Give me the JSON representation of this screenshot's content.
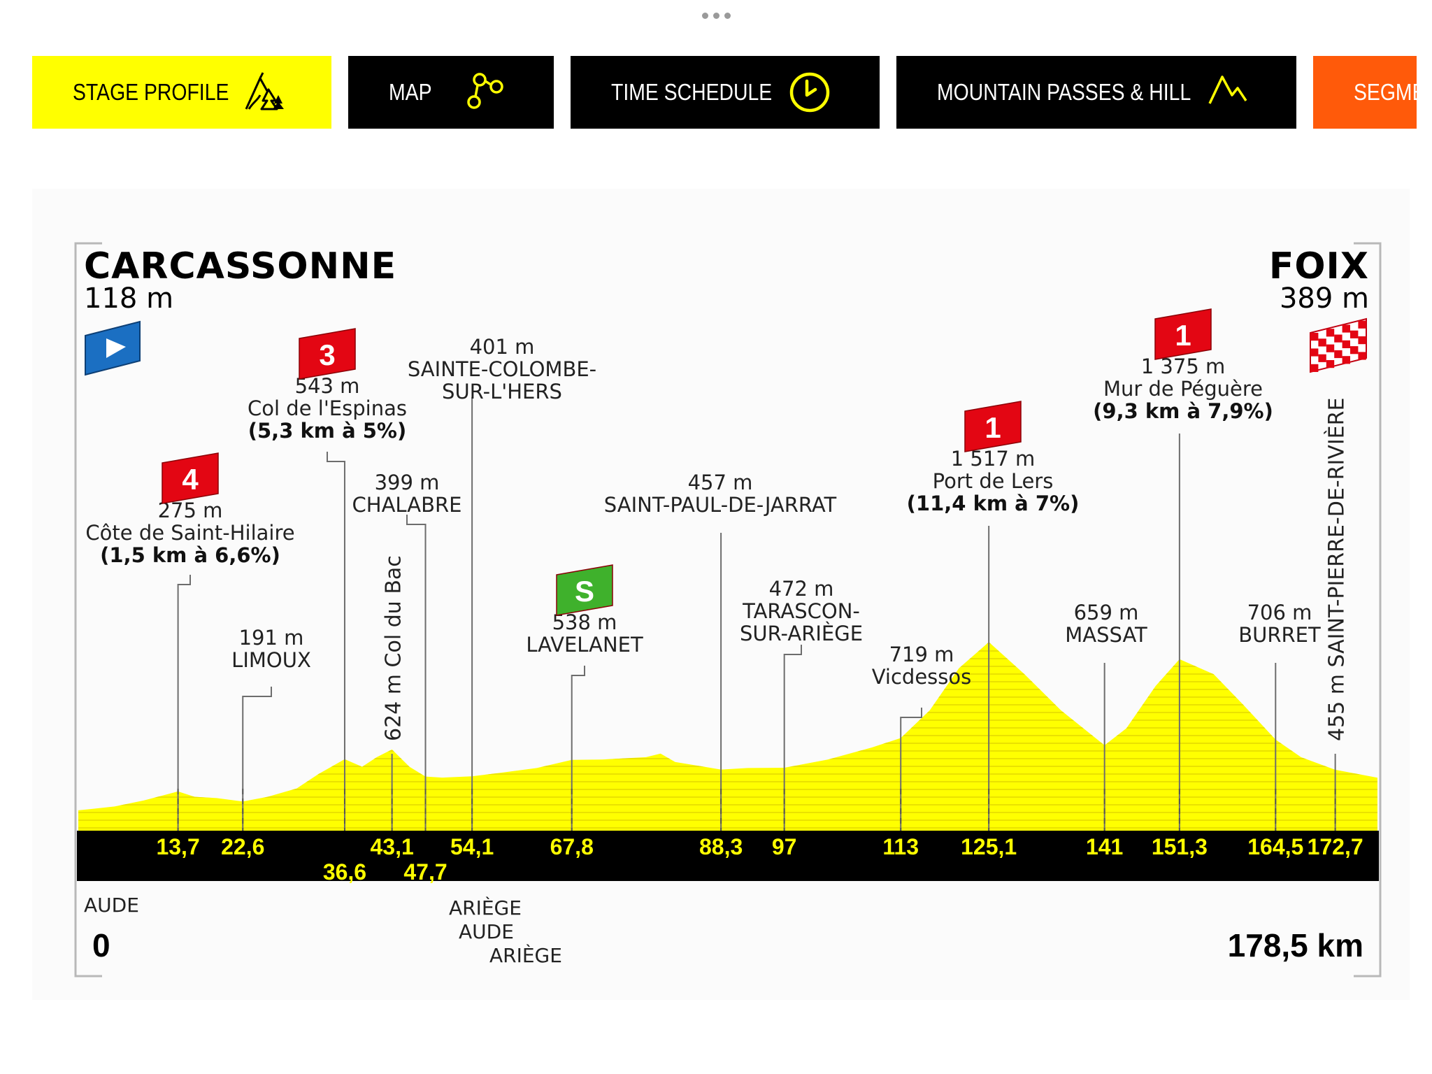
{
  "tabs": [
    {
      "label": "STAGE PROFILE",
      "icon": "forest-mountain-icon",
      "active": true
    },
    {
      "label": "MAP",
      "icon": "route-circles-icon",
      "active": false
    },
    {
      "label": "TIME SCHEDULE",
      "icon": "clock-icon",
      "active": false
    },
    {
      "label": "MOUNTAIN PASSES & HILL",
      "icon": "mountain-peak-icon",
      "active": false
    },
    {
      "label": "SEGME",
      "icon": "",
      "active": false
    }
  ],
  "colors": {
    "profile_yellow": "#ffff00",
    "tab_black": "#000000",
    "category_red": "#e30613",
    "sprint_green": "#3fb12c",
    "start_blue": "#1b6fc2",
    "segment_orange": "#ff5a0a"
  },
  "profile": {
    "start": {
      "name": "CARCASSONNE",
      "altitude": "118 m",
      "km": "0",
      "icon": "start-flag-icon"
    },
    "finish": {
      "name": "FOIX",
      "altitude": "389 m",
      "km": "178,5 km",
      "icon": "finish-flag-icon"
    },
    "distance_axis": {
      "min": 0,
      "max": 178.5
    },
    "points": [
      {
        "km": "13,7",
        "altitude": "275 m",
        "name": "Côte de Saint-Hilaire",
        "detail": "(1,5 km à 6,6%)",
        "category": "4"
      },
      {
        "km": "22,6",
        "altitude": "191 m",
        "name": "LIMOUX"
      },
      {
        "km": "36,6",
        "altitude": "543 m",
        "name": "Col de l'Espinas",
        "detail": "(5,3 km à 5%)",
        "category": "3"
      },
      {
        "km": "43,1",
        "altitude": "624 m",
        "name": "Col du Bac"
      },
      {
        "km": "47,7",
        "altitude": "399 m",
        "name": "CHALABRE"
      },
      {
        "km": "54,1",
        "altitude": "401 m",
        "name": "SAINTE-COLOMBE-SUR-L'HERS"
      },
      {
        "km": "67,8",
        "altitude": "538 m",
        "name": "LAVELANET",
        "sprint": "S"
      },
      {
        "km": "88,3",
        "altitude": "457 m",
        "name": "SAINT-PAUL-DE-JARRAT"
      },
      {
        "km": "97",
        "altitude": "472 m",
        "name": "TARASCON-SUR-ARIÈGE"
      },
      {
        "km": "113",
        "altitude": "719 m",
        "name": "Vicdessos"
      },
      {
        "km": "125,1",
        "altitude": "1 517 m",
        "name": "Port de Lers",
        "detail": "(11,4 km à 7%)",
        "category": "1"
      },
      {
        "km": "141",
        "altitude": "659 m",
        "name": "MASSAT"
      },
      {
        "km": "151,3",
        "altitude": "1 375 m",
        "name": "Mur de Péguère",
        "detail": "(9,3 km à 7,9%)",
        "category": "1"
      },
      {
        "km": "164,5",
        "altitude": "706 m",
        "name": "BURRET"
      },
      {
        "km": "172,7",
        "altitude": "455 m",
        "name": "SAINT-PIERRE-DE-RIVIÈRE"
      }
    ],
    "departments": [
      "AUDE",
      "ARIÈGE",
      "AUDE",
      "ARIÈGE"
    ],
    "elevation_profile": [
      [
        0,
        118
      ],
      [
        5,
        150
      ],
      [
        9,
        200
      ],
      [
        13.7,
        275
      ],
      [
        16,
        230
      ],
      [
        19,
        220
      ],
      [
        22.6,
        191
      ],
      [
        26,
        230
      ],
      [
        30,
        300
      ],
      [
        33,
        420
      ],
      [
        36.6,
        543
      ],
      [
        39,
        480
      ],
      [
        41,
        560
      ],
      [
        43.1,
        624
      ],
      [
        45.5,
        480
      ],
      [
        47.7,
        399
      ],
      [
        50,
        390
      ],
      [
        54.1,
        401
      ],
      [
        58,
        430
      ],
      [
        63,
        470
      ],
      [
        67.8,
        538
      ],
      [
        72,
        540
      ],
      [
        78,
        560
      ],
      [
        80,
        590
      ],
      [
        82,
        520
      ],
      [
        88.3,
        457
      ],
      [
        92,
        470
      ],
      [
        97,
        472
      ],
      [
        103,
        540
      ],
      [
        109,
        640
      ],
      [
        113,
        719
      ],
      [
        117,
        950
      ],
      [
        121,
        1300
      ],
      [
        125.1,
        1517
      ],
      [
        130,
        1250
      ],
      [
        135,
        950
      ],
      [
        141,
        659
      ],
      [
        144,
        800
      ],
      [
        148,
        1150
      ],
      [
        151.3,
        1375
      ],
      [
        156,
        1250
      ],
      [
        160,
        1000
      ],
      [
        164.5,
        706
      ],
      [
        168,
        560
      ],
      [
        172.7,
        455
      ],
      [
        178.5,
        389
      ]
    ]
  }
}
